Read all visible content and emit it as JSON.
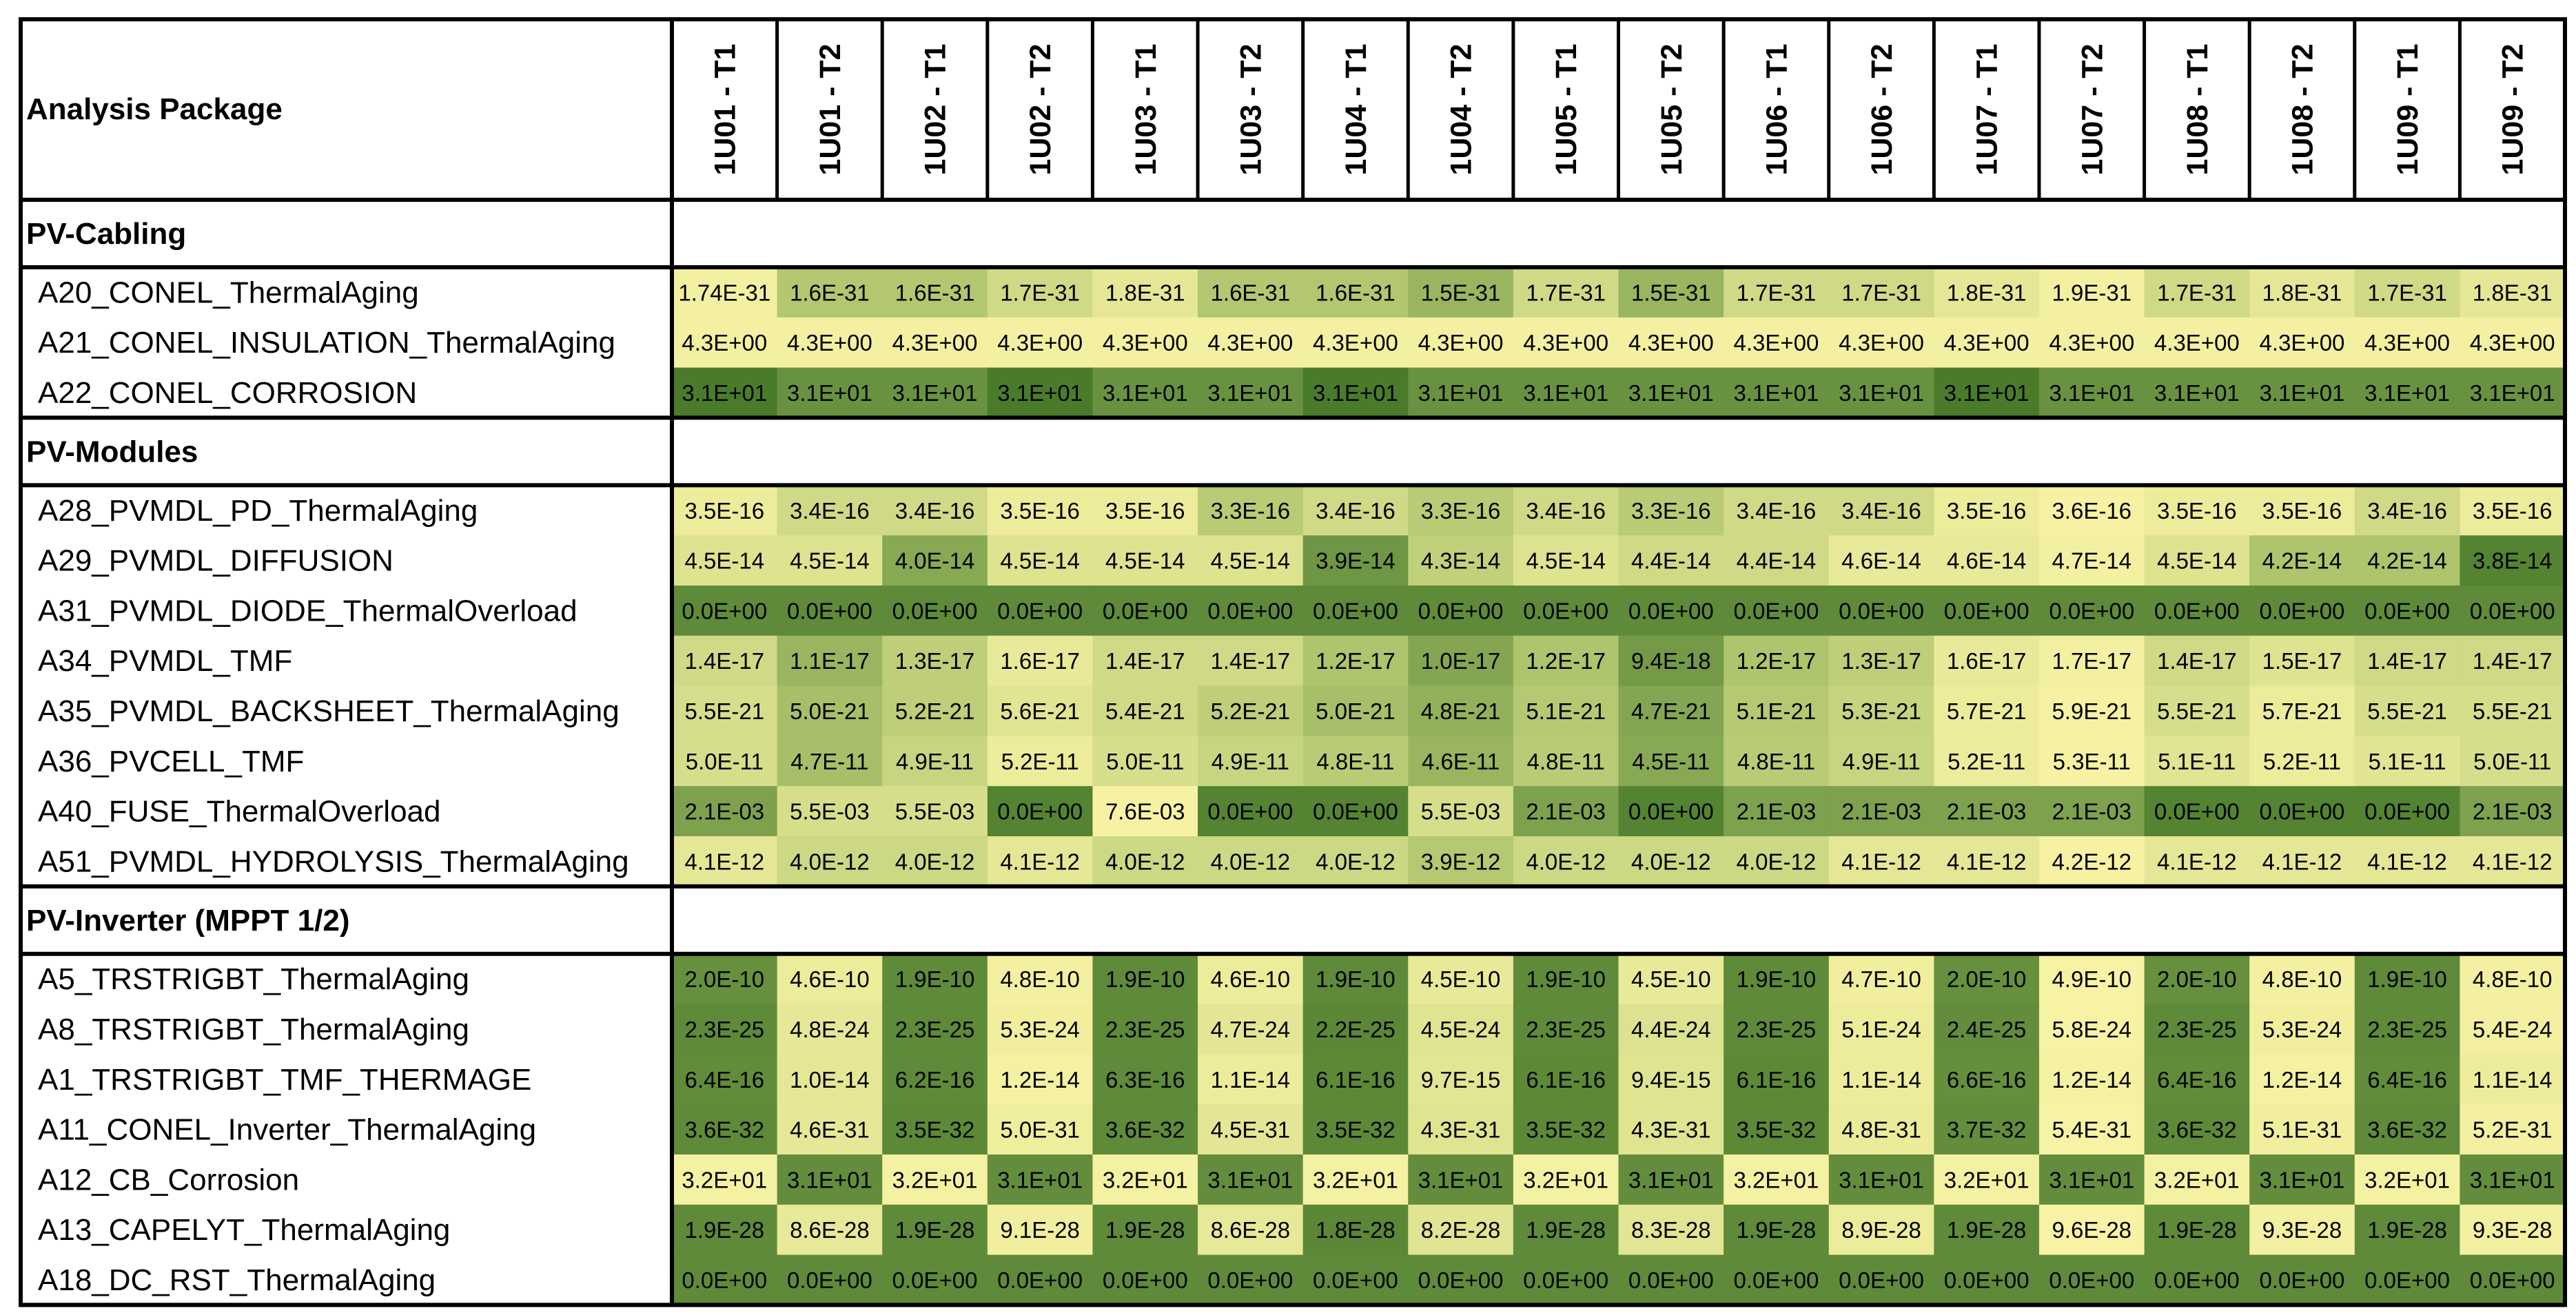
{
  "chart_data": {
    "type": "heatmap",
    "header_label": "Analysis Package",
    "columns": [
      "1U01 - T1",
      "1U01 - T2",
      "1U02 - T1",
      "1U02 - T2",
      "1U03 - T1",
      "1U03 - T2",
      "1U04 - T1",
      "1U04 - T2",
      "1U05 - T1",
      "1U05 - T2",
      "1U06 - T1",
      "1U06 - T2",
      "1U07 - T1",
      "1U07 - T2",
      "1U08 - T1",
      "1U08 - T2",
      "1U09 - T1",
      "1U09 - T2"
    ],
    "groups": [
      {
        "name": "PV-Cabling",
        "rows": [
          {
            "label": "A20_CONEL_ThermalAging",
            "values": [
              "1.74E-31",
              "1.6E-31",
              "1.6E-31",
              "1.7E-31",
              "1.8E-31",
              "1.6E-31",
              "1.6E-31",
              "1.5E-31",
              "1.7E-31",
              "1.5E-31",
              "1.7E-31",
              "1.7E-31",
              "1.8E-31",
              "1.9E-31",
              "1.7E-31",
              "1.8E-31",
              "1.7E-31",
              "1.8E-31"
            ],
            "shade": [
              0.05,
              0.5,
              0.5,
              0.3,
              0.15,
              0.5,
              0.5,
              0.62,
              0.3,
              0.62,
              0.3,
              0.3,
              0.15,
              0.05,
              0.3,
              0.15,
              0.3,
              0.15
            ]
          },
          {
            "label": "A21_CONEL_INSULATION_ThermalAging",
            "values": [
              "4.3E+00",
              "4.3E+00",
              "4.3E+00",
              "4.3E+00",
              "4.3E+00",
              "4.3E+00",
              "4.3E+00",
              "4.3E+00",
              "4.3E+00",
              "4.3E+00",
              "4.3E+00",
              "4.3E+00",
              "4.3E+00",
              "4.3E+00",
              "4.3E+00",
              "4.3E+00",
              "4.3E+00",
              "4.3E+00"
            ],
            "shade": [
              0.05,
              0.05,
              0.05,
              0.05,
              0.05,
              0.05,
              0.05,
              0.05,
              0.05,
              0.05,
              0.05,
              0.05,
              0.05,
              0.05,
              0.05,
              0.05,
              0.05,
              0.05
            ]
          },
          {
            "label": "A22_CONEL_CORROSION",
            "values": [
              "3.1E+01",
              "3.1E+01",
              "3.1E+01",
              "3.1E+01",
              "3.1E+01",
              "3.1E+01",
              "3.1E+01",
              "3.1E+01",
              "3.1E+01",
              "3.1E+01",
              "3.1E+01",
              "3.1E+01",
              "3.1E+01",
              "3.1E+01",
              "3.1E+01",
              "3.1E+01",
              "3.1E+01",
              "3.1E+01"
            ],
            "shade": [
              1,
              0.85,
              0.85,
              1,
              0.85,
              0.85,
              1,
              0.85,
              0.85,
              0.85,
              0.85,
              0.85,
              1,
              0.85,
              0.85,
              0.85,
              0.85,
              0.85
            ]
          }
        ]
      },
      {
        "name": "PV-Modules",
        "rows": [
          {
            "label": "A28_PVMDL_PD_ThermalAging",
            "values": [
              "3.5E-16",
              "3.4E-16",
              "3.4E-16",
              "3.5E-16",
              "3.5E-16",
              "3.3E-16",
              "3.4E-16",
              "3.3E-16",
              "3.4E-16",
              "3.3E-16",
              "3.4E-16",
              "3.4E-16",
              "3.5E-16",
              "3.6E-16",
              "3.5E-16",
              "3.5E-16",
              "3.4E-16",
              "3.5E-16"
            ],
            "shade": [
              0.1,
              0.3,
              0.3,
              0.1,
              0.1,
              0.45,
              0.3,
              0.45,
              0.3,
              0.45,
              0.3,
              0.3,
              0.1,
              0.03,
              0.1,
              0.1,
              0.3,
              0.1
            ]
          },
          {
            "label": "A29_PVMDL_DIFFUSION",
            "values": [
              "4.5E-14",
              "4.5E-14",
              "4.0E-14",
              "4.5E-14",
              "4.5E-14",
              "4.5E-14",
              "3.9E-14",
              "4.3E-14",
              "4.5E-14",
              "4.4E-14",
              "4.4E-14",
              "4.6E-14",
              "4.6E-14",
              "4.7E-14",
              "4.5E-14",
              "4.2E-14",
              "4.2E-14",
              "3.8E-14"
            ],
            "shade": [
              0.2,
              0.2,
              0.7,
              0.2,
              0.2,
              0.2,
              0.82,
              0.4,
              0.2,
              0.3,
              0.3,
              0.12,
              0.12,
              0.05,
              0.2,
              0.52,
              0.52,
              0.95
            ]
          },
          {
            "label": "A31_PVMDL_DIODE_ThermalOverload",
            "values": [
              "0.0E+00",
              "0.0E+00",
              "0.0E+00",
              "0.0E+00",
              "0.0E+00",
              "0.0E+00",
              "0.0E+00",
              "0.0E+00",
              "0.0E+00",
              "0.0E+00",
              "0.0E+00",
              "0.0E+00",
              "0.0E+00",
              "0.0E+00",
              "0.0E+00",
              "0.0E+00",
              "0.0E+00",
              "0.0E+00"
            ],
            "shade": [
              0.9,
              0.9,
              0.9,
              0.9,
              0.9,
              0.9,
              0.9,
              0.9,
              0.9,
              0.9,
              0.9,
              0.9,
              0.9,
              0.9,
              0.9,
              0.9,
              0.9,
              0.9
            ]
          },
          {
            "label": "A34_PVMDL_TMF",
            "values": [
              "1.4E-17",
              "1.1E-17",
              "1.3E-17",
              "1.6E-17",
              "1.4E-17",
              "1.4E-17",
              "1.2E-17",
              "1.0E-17",
              "1.2E-17",
              "9.4E-18",
              "1.2E-17",
              "1.3E-17",
              "1.6E-17",
              "1.7E-17",
              "1.4E-17",
              "1.5E-17",
              "1.4E-17",
              "1.4E-17"
            ],
            "shade": [
              0.3,
              0.62,
              0.42,
              0.12,
              0.3,
              0.3,
              0.52,
              0.72,
              0.52,
              0.8,
              0.52,
              0.42,
              0.12,
              0.05,
              0.3,
              0.2,
              0.3,
              0.3
            ]
          },
          {
            "label": "A35_PVMDL_BACKSHEET_ThermalAging",
            "values": [
              "5.5E-21",
              "5.0E-21",
              "5.2E-21",
              "5.6E-21",
              "5.4E-21",
              "5.2E-21",
              "5.0E-21",
              "4.8E-21",
              "5.1E-21",
              "4.7E-21",
              "5.1E-21",
              "5.3E-21",
              "5.7E-21",
              "5.9E-21",
              "5.5E-21",
              "5.7E-21",
              "5.5E-21",
              "5.5E-21"
            ],
            "shade": [
              0.25,
              0.55,
              0.42,
              0.18,
              0.3,
              0.42,
              0.55,
              0.65,
              0.48,
              0.72,
              0.48,
              0.36,
              0.1,
              0.03,
              0.25,
              0.1,
              0.25,
              0.25
            ]
          },
          {
            "label": "A36_PVCELL_TMF",
            "values": [
              "5.0E-11",
              "4.7E-11",
              "4.9E-11",
              "5.2E-11",
              "5.0E-11",
              "4.9E-11",
              "4.8E-11",
              "4.6E-11",
              "4.8E-11",
              "4.5E-11",
              "4.8E-11",
              "4.9E-11",
              "5.2E-11",
              "5.3E-11",
              "5.1E-11",
              "5.2E-11",
              "5.1E-11",
              "5.0E-11"
            ],
            "shade": [
              0.25,
              0.55,
              0.35,
              0.1,
              0.25,
              0.35,
              0.45,
              0.62,
              0.45,
              0.7,
              0.45,
              0.35,
              0.1,
              0.03,
              0.18,
              0.1,
              0.18,
              0.25
            ]
          },
          {
            "label": "A40_FUSE_ThermalOverload",
            "values": [
              "2.1E-03",
              "5.5E-03",
              "5.5E-03",
              "0.0E+00",
              "7.6E-03",
              "0.0E+00",
              "0.0E+00",
              "5.5E-03",
              "2.1E-03",
              "0.0E+00",
              "2.1E-03",
              "2.1E-03",
              "2.1E-03",
              "2.1E-03",
              "0.0E+00",
              "0.0E+00",
              "0.0E+00",
              "2.1E-03"
            ],
            "shade": [
              0.75,
              0.25,
              0.25,
              0.95,
              0.03,
              0.95,
              0.95,
              0.25,
              0.75,
              0.95,
              0.75,
              0.75,
              0.75,
              0.75,
              0.95,
              0.95,
              0.95,
              0.75
            ]
          },
          {
            "label": "A51_PVMDL_HYDROLYSIS_ThermalAging",
            "values": [
              "4.1E-12",
              "4.0E-12",
              "4.0E-12",
              "4.1E-12",
              "4.0E-12",
              "4.0E-12",
              "4.0E-12",
              "3.9E-12",
              "4.0E-12",
              "4.0E-12",
              "4.0E-12",
              "4.1E-12",
              "4.1E-12",
              "4.2E-12",
              "4.1E-12",
              "4.1E-12",
              "4.1E-12",
              "4.1E-12"
            ],
            "shade": [
              0.15,
              0.32,
              0.32,
              0.15,
              0.32,
              0.32,
              0.32,
              0.48,
              0.32,
              0.32,
              0.32,
              0.15,
              0.15,
              0.03,
              0.15,
              0.15,
              0.15,
              0.15
            ]
          }
        ]
      },
      {
        "name": "PV-Inverter (MPPT 1/2)",
        "rows": [
          {
            "label": "A5_TRSTRIGBT_ThermalAging",
            "values": [
              "2.0E-10",
              "4.6E-10",
              "1.9E-10",
              "4.8E-10",
              "1.9E-10",
              "4.6E-10",
              "1.9E-10",
              "4.5E-10",
              "1.9E-10",
              "4.5E-10",
              "1.9E-10",
              "4.7E-10",
              "2.0E-10",
              "4.9E-10",
              "2.0E-10",
              "4.8E-10",
              "1.9E-10",
              "4.8E-10"
            ],
            "shade": [
              0.86,
              0.1,
              0.9,
              0.05,
              0.9,
              0.1,
              0.9,
              0.12,
              0.9,
              0.12,
              0.9,
              0.07,
              0.86,
              0.02,
              0.86,
              0.05,
              0.9,
              0.05
            ]
          },
          {
            "label": "A8_TRSTRIGBT_ThermalAging",
            "values": [
              "2.3E-25",
              "4.8E-24",
              "2.3E-25",
              "5.3E-24",
              "2.3E-25",
              "4.7E-24",
              "2.2E-25",
              "4.5E-24",
              "2.3E-25",
              "4.4E-24",
              "2.3E-25",
              "5.1E-24",
              "2.4E-25",
              "5.8E-24",
              "2.3E-25",
              "5.3E-24",
              "2.3E-25",
              "5.4E-24"
            ],
            "shade": [
              0.9,
              0.14,
              0.9,
              0.07,
              0.9,
              0.16,
              0.92,
              0.19,
              0.9,
              0.21,
              0.9,
              0.1,
              0.88,
              0.02,
              0.9,
              0.07,
              0.9,
              0.06
            ]
          },
          {
            "label": "A1_TRSTRIGBT_TMF_THERMAGE",
            "values": [
              "6.4E-16",
              "1.0E-14",
              "6.2E-16",
              "1.2E-14",
              "6.3E-16",
              "1.1E-14",
              "6.1E-16",
              "9.7E-15",
              "6.1E-16",
              "9.4E-15",
              "6.1E-16",
              "1.1E-14",
              "6.6E-16",
              "1.2E-14",
              "6.4E-16",
              "1.2E-14",
              "6.4E-16",
              "1.1E-14"
            ],
            "shade": [
              0.89,
              0.15,
              0.9,
              0.04,
              0.9,
              0.1,
              0.91,
              0.17,
              0.91,
              0.19,
              0.91,
              0.1,
              0.87,
              0.04,
              0.89,
              0.04,
              0.89,
              0.1
            ]
          },
          {
            "label": "A11_CONEL_Inverter_ThermalAging",
            "values": [
              "3.6E-32",
              "4.6E-31",
              "3.5E-32",
              "5.0E-31",
              "3.6E-32",
              "4.5E-31",
              "3.5E-32",
              "4.3E-31",
              "3.5E-32",
              "4.3E-31",
              "3.5E-32",
              "4.8E-31",
              "3.7E-32",
              "5.4E-31",
              "3.6E-32",
              "5.1E-31",
              "3.6E-32",
              "5.2E-31"
            ],
            "shade": [
              0.9,
              0.14,
              0.91,
              0.08,
              0.9,
              0.16,
              0.91,
              0.19,
              0.91,
              0.19,
              0.91,
              0.11,
              0.88,
              0.02,
              0.9,
              0.07,
              0.9,
              0.05
            ]
          },
          {
            "label": "A12_CB_Corrosion",
            "values": [
              "3.2E+01",
              "3.1E+01",
              "3.2E+01",
              "3.1E+01",
              "3.2E+01",
              "3.1E+01",
              "3.2E+01",
              "3.1E+01",
              "3.2E+01",
              "3.1E+01",
              "3.2E+01",
              "3.1E+01",
              "3.2E+01",
              "3.1E+01",
              "3.2E+01",
              "3.1E+01",
              "3.2E+01",
              "3.1E+01"
            ],
            "shade": [
              0.04,
              0.88,
              0.04,
              0.88,
              0.04,
              0.88,
              0.04,
              0.88,
              0.04,
              0.88,
              0.04,
              0.88,
              0.04,
              0.88,
              0.04,
              0.88,
              0.04,
              0.88
            ]
          },
          {
            "label": "A13_CAPELYT_ThermalAging",
            "values": [
              "1.9E-28",
              "8.6E-28",
              "1.9E-28",
              "9.1E-28",
              "1.9E-28",
              "8.6E-28",
              "1.8E-28",
              "8.2E-28",
              "1.9E-28",
              "8.3E-28",
              "1.9E-28",
              "8.9E-28",
              "1.9E-28",
              "9.6E-28",
              "1.9E-28",
              "9.3E-28",
              "1.9E-28",
              "9.3E-28"
            ],
            "shade": [
              0.9,
              0.13,
              0.9,
              0.07,
              0.9,
              0.13,
              0.92,
              0.18,
              0.9,
              0.17,
              0.9,
              0.1,
              0.9,
              0.02,
              0.9,
              0.05,
              0.9,
              0.05
            ]
          },
          {
            "label": "A18_DC_RST_ThermalAging",
            "values": [
              "0.0E+00",
              "0.0E+00",
              "0.0E+00",
              "0.0E+00",
              "0.0E+00",
              "0.0E+00",
              "0.0E+00",
              "0.0E+00",
              "0.0E+00",
              "0.0E+00",
              "0.0E+00",
              "0.0E+00",
              "0.0E+00",
              "0.0E+00",
              "0.0E+00",
              "0.0E+00",
              "0.0E+00",
              "0.0E+00"
            ],
            "shade": [
              0.9,
              0.9,
              0.9,
              0.9,
              0.9,
              0.9,
              0.9,
              0.9,
              0.9,
              0.9,
              0.9,
              0.9,
              0.9,
              0.9,
              0.9,
              0.9,
              0.9,
              0.9
            ]
          }
        ]
      }
    ],
    "color_scale": {
      "low": "#fbf5a6",
      "mid": "#b2c770",
      "high": "#4a7b2b"
    }
  }
}
